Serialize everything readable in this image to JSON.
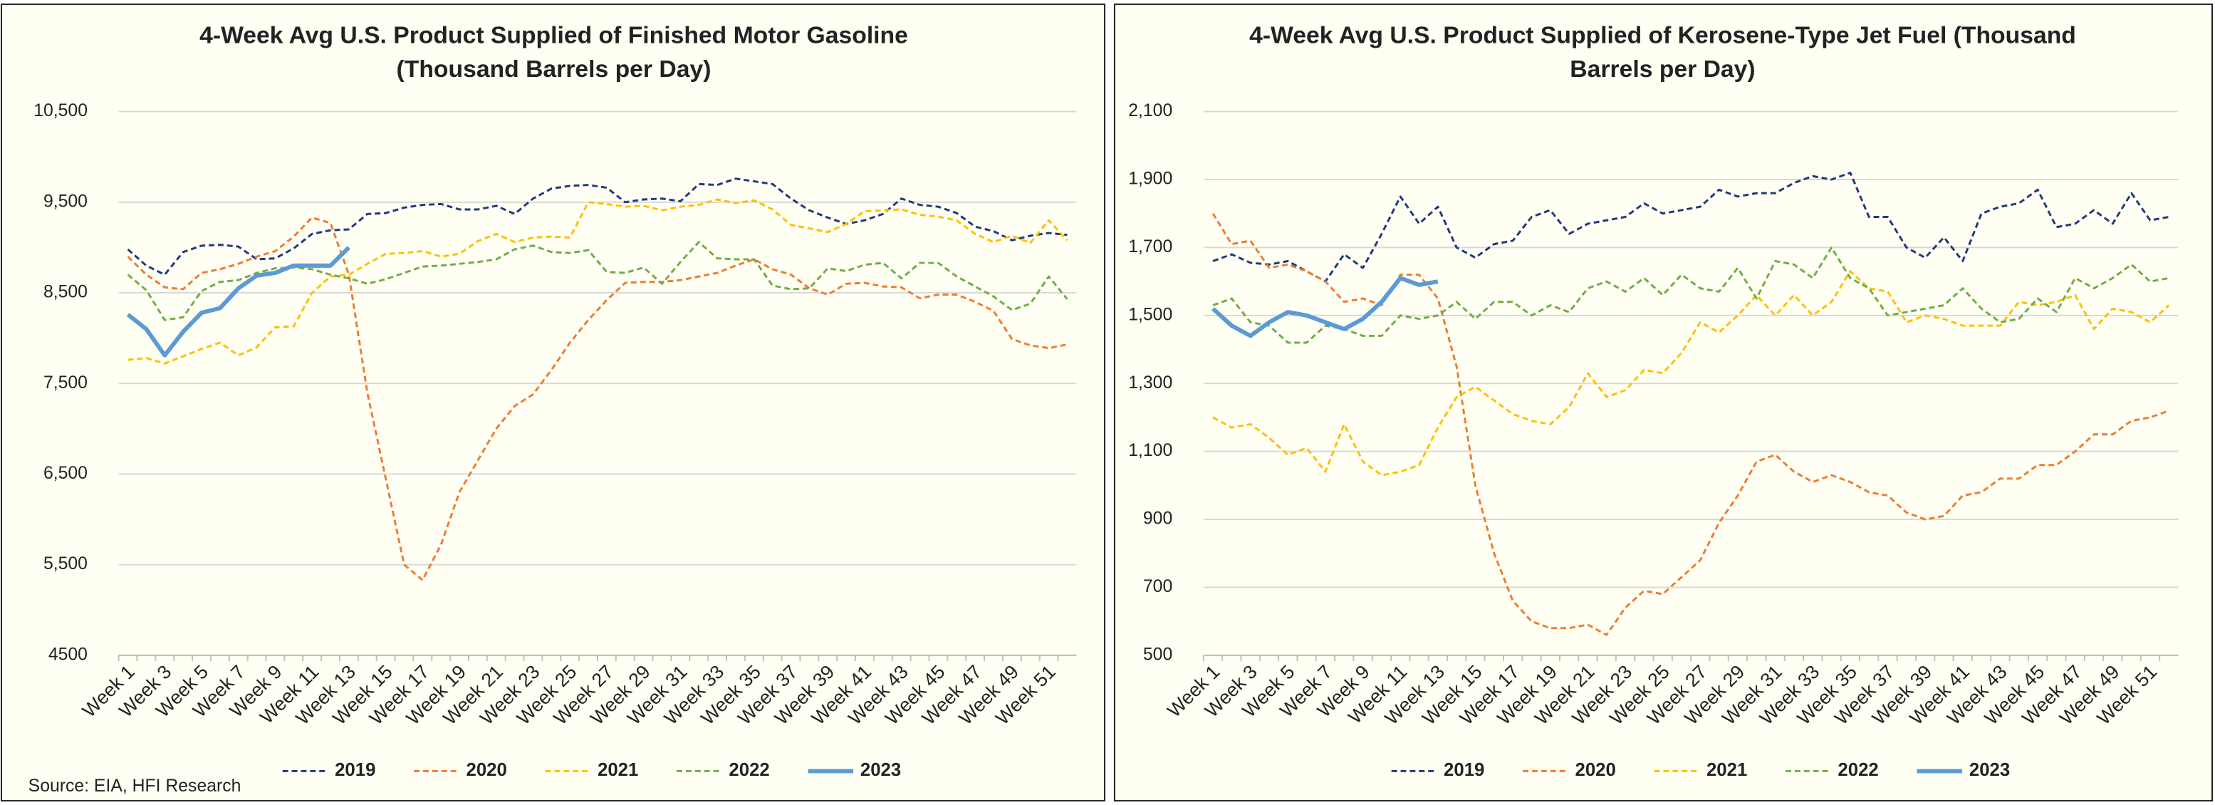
{
  "source": "Source: EIA, HFI Research",
  "chart_data": [
    {
      "type": "line",
      "title": [
        "4-Week Avg U.S. Product Supplied of Finished Motor Gasoline",
        "(Thousand Barrels per Day)"
      ],
      "categories": [
        "Week 1",
        null,
        "Week 3",
        null,
        "Week 5",
        null,
        "Week 7",
        null,
        "Week 9",
        null,
        "Week 11",
        null,
        "Week 13",
        null,
        "Week 15",
        null,
        "Week 17",
        null,
        "Week 19",
        null,
        "Week 21",
        null,
        "Week 23",
        null,
        "Week 25",
        null,
        "Week 27",
        null,
        "Week 29",
        null,
        "Week 31",
        null,
        "Week 33",
        null,
        "Week 35",
        null,
        "Week 37",
        null,
        "Week 39",
        null,
        "Week 41",
        null,
        "Week 43",
        null,
        "Week 45",
        null,
        "Week 47",
        null,
        "Week 49",
        null,
        "Week 51",
        null
      ],
      "ylim": [
        4500,
        10500
      ],
      "yticks": [
        4500,
        {
          "value": 5500,
          "label": "5,500"
        },
        {
          "value": 6500,
          "label": "6,500"
        },
        {
          "value": 7500,
          "label": "7,500"
        },
        {
          "value": 8500,
          "label": "8,500"
        },
        {
          "value": 9500,
          "label": "9,500"
        },
        {
          "value": 10500,
          "label": "10,500"
        }
      ],
      "grid": true,
      "series": [
        {
          "name": "2019",
          "color": "#1f3a7a",
          "line_style": "dashed",
          "values": [
            8980,
            8800,
            8700,
            8950,
            9020,
            9030,
            9010,
            8870,
            8880,
            8990,
            9150,
            9190,
            9200,
            9370,
            9380,
            9440,
            9470,
            9480,
            9420,
            9420,
            9460,
            9370,
            9540,
            9650,
            9680,
            9690,
            9660,
            9500,
            9530,
            9540,
            9510,
            9700,
            9690,
            9760,
            9730,
            9700,
            9540,
            9410,
            9330,
            9260,
            9300,
            9370,
            9540,
            9470,
            9450,
            9380,
            9230,
            9180,
            9080,
            9130,
            9160,
            9140
          ]
        },
        {
          "name": "2020",
          "color": "#ed7d31",
          "line_style": "dashed",
          "values": [
            8900,
            8700,
            8560,
            8540,
            8720,
            8760,
            8820,
            8900,
            8960,
            9120,
            9330,
            9270,
            8700,
            7400,
            6450,
            5500,
            5330,
            5720,
            6300,
            6650,
            7000,
            7250,
            7380,
            7650,
            7950,
            8200,
            8420,
            8610,
            8620,
            8620,
            8640,
            8680,
            8720,
            8800,
            8870,
            8760,
            8700,
            8550,
            8480,
            8600,
            8610,
            8570,
            8560,
            8440,
            8480,
            8480,
            8400,
            8300,
            7990,
            7920,
            7890,
            7930
          ]
        },
        {
          "name": "2021",
          "color": "#ffc000",
          "line_style": "dashed",
          "values": [
            7760,
            7780,
            7720,
            7800,
            7880,
            7950,
            7810,
            7900,
            8120,
            8130,
            8500,
            8680,
            8700,
            8820,
            8930,
            8940,
            8960,
            8900,
            8930,
            9070,
            9150,
            9060,
            9110,
            9120,
            9110,
            9500,
            9480,
            9450,
            9460,
            9410,
            9450,
            9470,
            9530,
            9490,
            9520,
            9420,
            9250,
            9210,
            9170,
            9260,
            9400,
            9410,
            9420,
            9360,
            9340,
            9300,
            9150,
            9060,
            9130,
            9050,
            9300,
            9080
          ]
        },
        {
          "name": "2022",
          "color": "#70ad47",
          "line_style": "dashed",
          "values": [
            8700,
            8530,
            8200,
            8230,
            8520,
            8620,
            8640,
            8720,
            8770,
            8780,
            8760,
            8700,
            8660,
            8600,
            8650,
            8720,
            8790,
            8800,
            8820,
            8840,
            8870,
            8980,
            9020,
            8950,
            8940,
            8970,
            8730,
            8720,
            8780,
            8600,
            8840,
            9060,
            8880,
            8870,
            8870,
            8580,
            8540,
            8550,
            8770,
            8740,
            8810,
            8830,
            8660,
            8830,
            8830,
            8680,
            8570,
            8460,
            8310,
            8380,
            8680,
            8430
          ]
        },
        {
          "name": "2023",
          "color": "#5b9bd5",
          "line_style": "solid",
          "values": [
            8260,
            8100,
            7810,
            8070,
            8280,
            8330,
            8550,
            8690,
            8720,
            8800,
            8800,
            8800,
            9000,
            null,
            null,
            null,
            null,
            null,
            null,
            null,
            null,
            null,
            null,
            null,
            null,
            null,
            null,
            null,
            null,
            null,
            null,
            null,
            null,
            null,
            null,
            null,
            null,
            null,
            null,
            null,
            null,
            null,
            null,
            null,
            null,
            null,
            null,
            null,
            null,
            null,
            null,
            null
          ]
        }
      ]
    },
    {
      "type": "line",
      "title": [
        "4-Week Avg U.S. Product Supplied of Kerosene-Type Jet Fuel  (Thousand",
        "Barrels per Day)"
      ],
      "categories": [
        "Week 1",
        null,
        "Week 3",
        null,
        "Week 5",
        null,
        "Week 7",
        null,
        "Week 9",
        null,
        "Week 11",
        null,
        "Week 13",
        null,
        "Week 15",
        null,
        "Week 17",
        null,
        "Week 19",
        null,
        "Week 21",
        null,
        "Week 23",
        null,
        "Week 25",
        null,
        "Week 27",
        null,
        "Week 29",
        null,
        "Week 31",
        null,
        "Week 33",
        null,
        "Week 35",
        null,
        "Week 37",
        null,
        "Week 39",
        null,
        "Week 41",
        null,
        "Week 43",
        null,
        "Week 45",
        null,
        "Week 47",
        null,
        "Week 49",
        null,
        "Week 51",
        null
      ],
      "ylim": [
        500,
        2100
      ],
      "yticks": [
        500,
        700,
        900,
        {
          "value": 1100,
          "label": "1,100"
        },
        {
          "value": 1300,
          "label": "1,300"
        },
        {
          "value": 1500,
          "label": "1,500"
        },
        {
          "value": 1700,
          "label": "1,700"
        },
        {
          "value": 1900,
          "label": "1,900"
        },
        {
          "value": 2100,
          "label": "2,100"
        }
      ],
      "grid": true,
      "series": [
        {
          "name": "2019",
          "color": "#1f3a7a",
          "line_style": "dashed",
          "values": [
            1660,
            1680,
            1655,
            1650,
            1660,
            1630,
            1600,
            1680,
            1640,
            1740,
            1850,
            1770,
            1820,
            1700,
            1670,
            1710,
            1720,
            1790,
            1810,
            1740,
            1770,
            1780,
            1790,
            1830,
            1800,
            1810,
            1820,
            1870,
            1850,
            1860,
            1860,
            1890,
            1910,
            1900,
            1920,
            1790,
            1790,
            1700,
            1670,
            1730,
            1660,
            1800,
            1820,
            1830,
            1870,
            1760,
            1770,
            1810,
            1770,
            1860,
            1780,
            1790
          ]
        },
        {
          "name": "2020",
          "color": "#ed7d31",
          "line_style": "dashed",
          "values": [
            1800,
            1710,
            1720,
            1640,
            1650,
            1630,
            1600,
            1540,
            1550,
            1530,
            1620,
            1620,
            1550,
            1350,
            1000,
            800,
            660,
            600,
            580,
            580,
            590,
            560,
            640,
            690,
            680,
            730,
            780,
            890,
            970,
            1070,
            1090,
            1040,
            1010,
            1030,
            1010,
            980,
            970,
            920,
            900,
            910,
            970,
            980,
            1020,
            1020,
            1060,
            1060,
            1100,
            1150,
            1150,
            1190,
            1200,
            1220
          ]
        },
        {
          "name": "2021",
          "color": "#ffc000",
          "line_style": "dashed",
          "values": [
            1200,
            1170,
            1180,
            1140,
            1090,
            1110,
            1040,
            1180,
            1070,
            1030,
            1040,
            1060,
            1170,
            1260,
            1290,
            1250,
            1210,
            1190,
            1180,
            1230,
            1330,
            1260,
            1280,
            1340,
            1330,
            1390,
            1480,
            1450,
            1500,
            1560,
            1500,
            1560,
            1500,
            1540,
            1630,
            1580,
            1570,
            1480,
            1500,
            1490,
            1470,
            1470,
            1470,
            1540,
            1530,
            1540,
            1560,
            1460,
            1520,
            1510,
            1480,
            1530
          ]
        },
        {
          "name": "2022",
          "color": "#70ad47",
          "line_style": "dashed",
          "values": [
            1530,
            1550,
            1480,
            1470,
            1420,
            1420,
            1470,
            1460,
            1440,
            1440,
            1500,
            1490,
            1500,
            1540,
            1490,
            1540,
            1540,
            1500,
            1530,
            1510,
            1580,
            1600,
            1570,
            1610,
            1560,
            1620,
            1580,
            1570,
            1640,
            1550,
            1660,
            1650,
            1610,
            1700,
            1610,
            1580,
            1500,
            1510,
            1520,
            1530,
            1580,
            1520,
            1480,
            1490,
            1550,
            1510,
            1610,
            1580,
            1610,
            1650,
            1600,
            1610
          ]
        },
        {
          "name": "2023",
          "color": "#5b9bd5",
          "line_style": "solid",
          "values": [
            1520,
            1470,
            1440,
            1480,
            1510,
            1500,
            1480,
            1460,
            1490,
            1540,
            1610,
            1590,
            1600,
            null,
            null,
            null,
            null,
            null,
            null,
            null,
            null,
            null,
            null,
            null,
            null,
            null,
            null,
            null,
            null,
            null,
            null,
            null,
            null,
            null,
            null,
            null,
            null,
            null,
            null,
            null,
            null,
            null,
            null,
            null,
            null,
            null,
            null,
            null,
            null,
            null,
            null,
            null
          ]
        }
      ]
    }
  ]
}
